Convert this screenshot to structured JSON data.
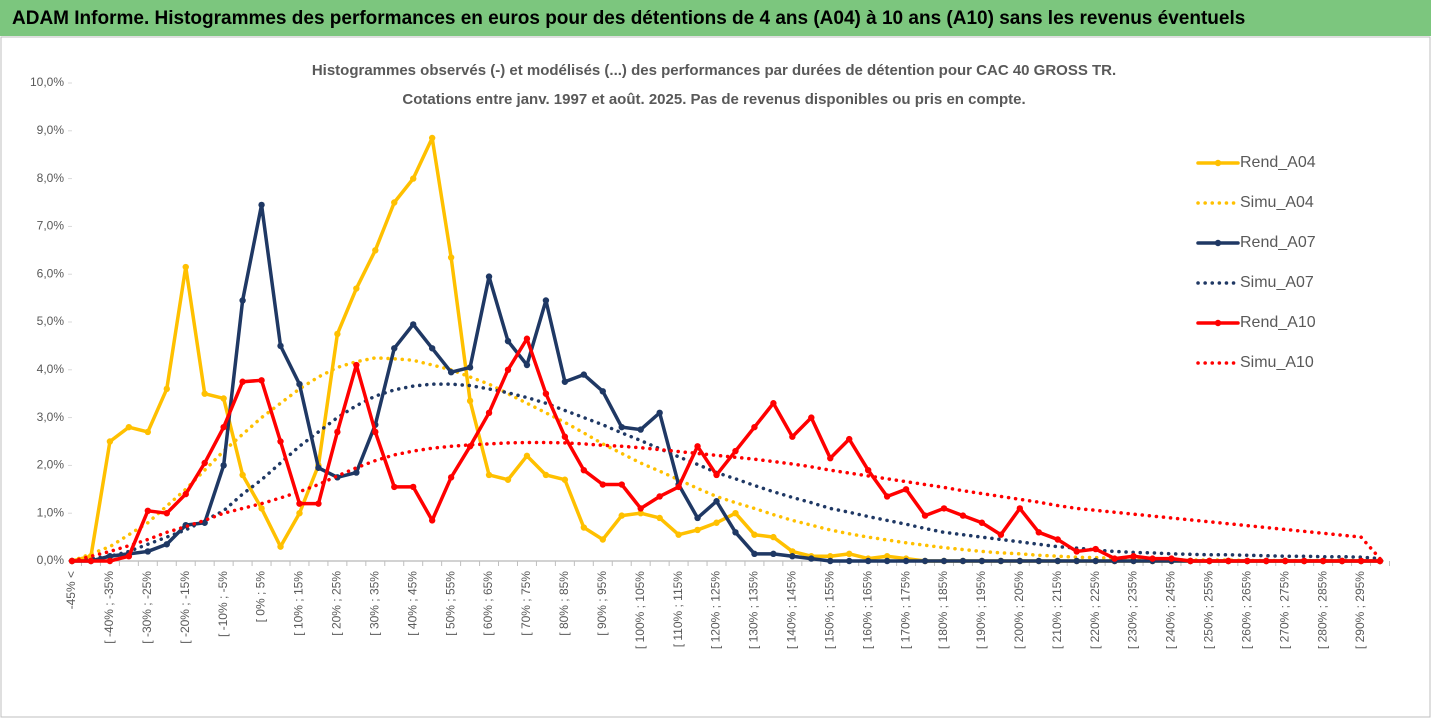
{
  "header": {
    "title": "ADAM Informe. Histogrammes des performances en euros pour des détentions de 4 ans (A04) à 10 ans (A10) sans les revenus éventuels"
  },
  "chart_data": {
    "type": "line",
    "title": "Histogrammes observés (-) et modélisés (...) des performances par durées de détention pour CAC 40 GROSS TR.",
    "subtitle": "Cotations entre janv. 1997 et août. 2025. Pas de revenus disponibles ou pris en compte.",
    "categories": [
      "-45% <",
      null,
      "[ -40% ; -35%",
      null,
      "[ -30% ; -25%",
      null,
      "[ -20% ; -15%",
      null,
      "[ -10% ; -5%",
      null,
      "[ 0% ; 5%",
      null,
      "[ 10% ; 15%",
      null,
      "[ 20% ; 25%",
      null,
      "[ 30% ; 35%",
      null,
      "[ 40% ; 45%",
      null,
      "[ 50% ; 55%",
      null,
      "[ 60% ; 65%",
      null,
      "[ 70% ; 75%",
      null,
      "[ 80% ; 85%",
      null,
      "[ 90% ; 95%",
      null,
      "[ 100% ; 105%",
      null,
      "[ 110% ; 115%",
      null,
      "[ 120% ; 125%",
      null,
      "[ 130% ; 135%",
      null,
      "[ 140% ; 145%",
      null,
      "[ 150% ; 155%",
      null,
      "[ 160% ; 165%",
      null,
      "[ 170% ; 175%",
      null,
      "[ 180% ; 185%",
      null,
      "[ 190% ; 195%",
      null,
      "[ 200% ; 205%",
      null,
      "[ 210% ; 215%",
      null,
      "[ 220% ; 225%",
      null,
      "[ 230% ; 235%",
      null,
      "[ 240% ; 245%",
      null,
      "[ 250% ; 255%",
      null,
      "[ 260% ; 265%",
      null,
      "[ 270% ; 275%",
      null,
      "[ 280% ; 285%",
      null,
      "[ 290% ; 295%",
      null
    ],
    "series": [
      {
        "name": "Rend_A04",
        "color": "#ffc000",
        "line_style": "solid",
        "markers": true,
        "values": [
          0,
          0.1,
          2.5,
          2.8,
          2.7,
          3.6,
          6.15,
          3.5,
          3.4,
          1.8,
          1.1,
          0.3,
          1.0,
          2.0,
          4.75,
          5.7,
          6.5,
          7.5,
          8.0,
          8.85,
          6.35,
          3.35,
          1.8,
          1.7,
          2.2,
          1.8,
          1.7,
          0.7,
          0.45,
          0.95,
          1.0,
          0.9,
          0.55,
          0.65,
          0.8,
          1.0,
          0.55,
          0.5,
          0.2,
          0.1,
          0.1,
          0.15,
          0.05,
          0.1,
          0.05,
          0,
          0,
          0,
          0,
          0,
          0,
          0,
          0,
          0,
          0,
          0,
          0,
          0,
          0,
          0,
          0,
          0,
          0,
          0,
          0,
          0,
          0,
          0,
          0,
          0
        ]
      },
      {
        "name": "Simu_A04",
        "color": "#ffc000",
        "line_style": "dotted",
        "markers": false,
        "values": [
          0,
          0.15,
          0.3,
          0.55,
          0.8,
          1.15,
          1.5,
          1.9,
          2.3,
          2.65,
          3.0,
          3.3,
          3.6,
          3.85,
          4.05,
          4.17,
          4.25,
          4.23,
          4.2,
          4.1,
          4.0,
          3.85,
          3.7,
          3.5,
          3.3,
          3.1,
          2.9,
          2.68,
          2.45,
          2.25,
          2.05,
          1.88,
          1.7,
          1.52,
          1.35,
          1.22,
          1.1,
          0.97,
          0.85,
          0.75,
          0.65,
          0.57,
          0.5,
          0.44,
          0.38,
          0.33,
          0.28,
          0.24,
          0.2,
          0.17,
          0.15,
          0.12,
          0.1,
          0.08,
          0.07,
          0.06,
          0.05,
          0.04,
          0.03,
          0.02,
          0.02,
          0.02,
          0.01,
          0.01,
          0.01,
          0.01,
          0.01,
          0.01,
          0.01,
          0
        ]
      },
      {
        "name": "Rend_A07",
        "color": "#1f3864",
        "line_style": "solid",
        "markers": true,
        "values": [
          0,
          0,
          0.1,
          0.15,
          0.2,
          0.35,
          0.75,
          0.8,
          2.0,
          5.45,
          7.45,
          4.5,
          3.7,
          1.95,
          1.75,
          1.85,
          2.85,
          4.45,
          4.95,
          4.45,
          3.95,
          4.05,
          5.95,
          4.6,
          4.1,
          5.45,
          3.75,
          3.9,
          3.55,
          2.8,
          2.75,
          3.1,
          1.6,
          0.9,
          1.25,
          0.6,
          0.15,
          0.15,
          0.1,
          0.05,
          0,
          0,
          0,
          0,
          0,
          0,
          0,
          0,
          0,
          0,
          0,
          0,
          0,
          0,
          0,
          0,
          0,
          0,
          0,
          0,
          0,
          0,
          0,
          0,
          0,
          0,
          0,
          0,
          0,
          0
        ]
      },
      {
        "name": "Simu_A07",
        "color": "#1f3864",
        "line_style": "dotted",
        "markers": false,
        "values": [
          0,
          0.05,
          0.1,
          0.2,
          0.35,
          0.5,
          0.65,
          0.85,
          1.05,
          1.4,
          1.7,
          2.05,
          2.4,
          2.7,
          3.0,
          3.25,
          3.45,
          3.58,
          3.66,
          3.7,
          3.7,
          3.67,
          3.6,
          3.52,
          3.42,
          3.3,
          3.15,
          3.0,
          2.85,
          2.68,
          2.52,
          2.35,
          2.18,
          2.02,
          1.85,
          1.72,
          1.58,
          1.45,
          1.33,
          1.22,
          1.1,
          1.02,
          0.93,
          0.85,
          0.77,
          0.68,
          0.6,
          0.55,
          0.5,
          0.45,
          0.4,
          0.35,
          0.3,
          0.27,
          0.23,
          0.2,
          0.18,
          0.17,
          0.15,
          0.14,
          0.13,
          0.13,
          0.12,
          0.11,
          0.1,
          0.1,
          0.09,
          0.09,
          0.08,
          0.05
        ]
      },
      {
        "name": "Rend_A10",
        "color": "#ff0000",
        "line_style": "solid",
        "markers": true,
        "values": [
          0,
          0,
          0,
          0.1,
          1.05,
          1.0,
          1.4,
          2.05,
          2.8,
          3.75,
          3.78,
          2.5,
          1.2,
          1.2,
          2.7,
          4.1,
          2.7,
          1.55,
          1.55,
          0.85,
          1.75,
          2.4,
          3.1,
          4.0,
          4.65,
          3.5,
          2.6,
          1.9,
          1.6,
          1.6,
          1.1,
          1.35,
          1.55,
          2.4,
          1.8,
          2.3,
          2.8,
          3.3,
          2.6,
          3.0,
          2.15,
          2.55,
          1.9,
          1.35,
          1.5,
          0.95,
          1.1,
          0.95,
          0.8,
          0.55,
          1.1,
          0.6,
          0.45,
          0.2,
          0.25,
          0.05,
          0.1,
          0.05,
          0.05,
          0,
          0,
          0,
          0,
          0,
          0,
          0,
          0,
          0,
          0,
          0
        ]
      },
      {
        "name": "Simu_A10",
        "color": "#ff0000",
        "line_style": "dotted",
        "markers": false,
        "values": [
          0,
          0.1,
          0.2,
          0.32,
          0.45,
          0.6,
          0.72,
          0.85,
          1.0,
          1.1,
          1.2,
          1.32,
          1.45,
          1.6,
          1.78,
          1.95,
          2.1,
          2.22,
          2.3,
          2.36,
          2.4,
          2.43,
          2.45,
          2.47,
          2.48,
          2.48,
          2.47,
          2.45,
          2.42,
          2.4,
          2.37,
          2.33,
          2.29,
          2.25,
          2.21,
          2.17,
          2.13,
          2.08,
          2.03,
          1.97,
          1.9,
          1.84,
          1.78,
          1.72,
          1.66,
          1.6,
          1.54,
          1.47,
          1.41,
          1.35,
          1.29,
          1.23,
          1.16,
          1.1,
          1.06,
          1.02,
          0.98,
          0.94,
          0.9,
          0.86,
          0.82,
          0.78,
          0.74,
          0.7,
          0.66,
          0.62,
          0.58,
          0.54,
          0.5,
          0.05
        ]
      }
    ],
    "ylim": [
      0,
      10
    ],
    "yticks": [
      {
        "value": 0,
        "label": "0,0%"
      },
      {
        "value": 1,
        "label": "1,0%"
      },
      {
        "value": 2,
        "label": "2,0%"
      },
      {
        "value": 3,
        "label": "3,0%"
      },
      {
        "value": 4,
        "label": "4,0%"
      },
      {
        "value": 5,
        "label": "5,0%"
      },
      {
        "value": 6,
        "label": "6,0%"
      },
      {
        "value": 7,
        "label": "7,0%"
      },
      {
        "value": 8,
        "label": "8,0%"
      },
      {
        "value": 9,
        "label": "9,0%"
      },
      {
        "value": 10,
        "label": "10,0%"
      }
    ],
    "grid": false,
    "legend": "right"
  }
}
